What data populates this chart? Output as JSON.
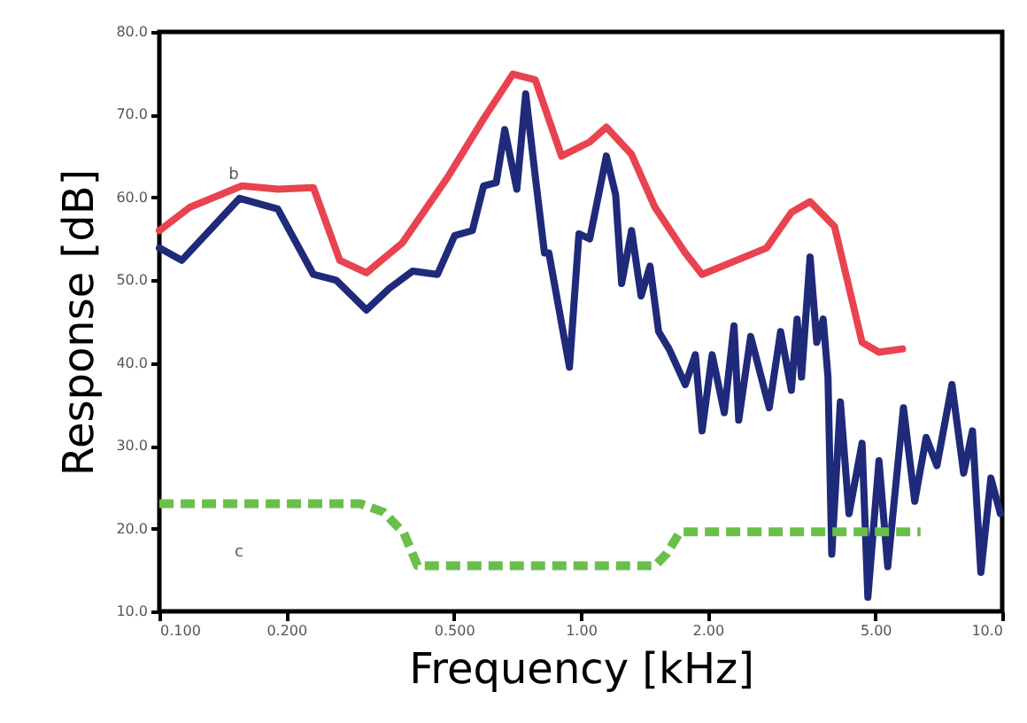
{
  "chart_data": {
    "type": "line",
    "xlabel": "Frequency [kHz]",
    "ylabel": "Response [dB]",
    "log": "x",
    "grid": false,
    "marker": "none",
    "xlim": [
      0.1,
      10
    ],
    "ylim": [
      10,
      80
    ],
    "xticks": [
      {
        "value": 0.1,
        "label": "0.100"
      },
      {
        "value": 0.2,
        "label": "0.200"
      },
      {
        "value": 0.5,
        "label": "0.500"
      },
      {
        "value": 1,
        "label": "1.00"
      },
      {
        "value": 2,
        "label": "2.00"
      },
      {
        "value": 5,
        "label": "5.00"
      },
      {
        "value": 10,
        "label": "10.0"
      }
    ],
    "yticks": [
      {
        "value": 10,
        "label": "10.0"
      },
      {
        "value": 20,
        "label": "20.0"
      },
      {
        "value": 30,
        "label": "30.0"
      },
      {
        "value": 40,
        "label": "40.0"
      },
      {
        "value": 50,
        "label": "50.0"
      },
      {
        "value": 60,
        "label": "60.0"
      },
      {
        "value": 70,
        "label": "70.0"
      },
      {
        "value": 80,
        "label": "80.0"
      }
    ],
    "series": [
      {
        "color": "#e8434f",
        "line_style": "solid",
        "x": [
          0.1,
          0.118,
          0.157,
          0.191,
          0.232,
          0.268,
          0.31,
          0.377,
          0.484,
          0.588,
          0.69,
          0.78,
          0.9,
          1.05,
          1.15,
          1.32,
          1.5,
          1.77,
          1.94,
          2.76,
          3.16,
          3.5,
          4.0,
          4.65,
          5.1,
          5.8
        ],
        "values": [
          56.0,
          58.8,
          61.4,
          61.0,
          61.2,
          52.4,
          50.9,
          54.5,
          62.5,
          69.5,
          74.9,
          74.2,
          65.0,
          66.7,
          68.5,
          65.2,
          58.8,
          53.3,
          50.7,
          53.9,
          58.2,
          59.5,
          56.5,
          42.5,
          41.3,
          41.7
        ]
      },
      {
        "color": "#1f2a7a",
        "line_style": "solid",
        "x": [
          0.1,
          0.113,
          0.155,
          0.191,
          0.232,
          0.263,
          0.31,
          0.351,
          0.399,
          0.457,
          0.502,
          0.553,
          0.588,
          0.63,
          0.66,
          0.705,
          0.74,
          0.78,
          0.82,
          0.84,
          0.94,
          0.99,
          1.05,
          1.15,
          1.21,
          1.25,
          1.32,
          1.39,
          1.46,
          1.53,
          1.62,
          1.77,
          1.87,
          1.94,
          2.05,
          2.19,
          2.31,
          2.37,
          2.53,
          2.8,
          2.98,
          3.16,
          3.26,
          3.34,
          3.5,
          3.63,
          3.76,
          3.86,
          3.94,
          4.13,
          4.33,
          4.65,
          4.8,
          5.1,
          5.35,
          5.83,
          6.2,
          6.6,
          7.0,
          7.6,
          8.1,
          8.5,
          8.9,
          9.4,
          9.9
        ],
        "values": [
          53.9,
          52.4,
          59.9,
          58.6,
          50.7,
          50.0,
          46.4,
          49.0,
          51.1,
          50.7,
          55.4,
          56.0,
          61.4,
          61.8,
          68.2,
          61.0,
          72.5,
          62.5,
          53.3,
          53.3,
          39.5,
          55.6,
          55.0,
          65.0,
          60.3,
          49.6,
          56.0,
          48.1,
          51.7,
          43.8,
          41.7,
          37.4,
          41.0,
          31.8,
          41.0,
          34.0,
          44.5,
          33.1,
          43.2,
          34.6,
          43.8,
          36.7,
          45.3,
          38.3,
          52.8,
          42.5,
          45.3,
          38.3,
          16.9,
          35.3,
          21.8,
          30.3,
          11.7,
          28.2,
          15.4,
          34.6,
          23.3,
          31.0,
          27.6,
          37.4,
          26.7,
          31.8,
          14.7,
          26.1,
          21.8
        ]
      },
      {
        "color": "#6abf4b",
        "line_style": "dashed",
        "x": [
          0.1,
          0.3,
          0.34,
          0.38,
          0.41,
          1.5,
          1.6,
          1.72,
          6.4
        ],
        "values": [
          23,
          23,
          22,
          19.5,
          15.5,
          15.5,
          17,
          19.6,
          19.6
        ]
      }
    ],
    "annotations": [
      "b",
      "c"
    ]
  }
}
